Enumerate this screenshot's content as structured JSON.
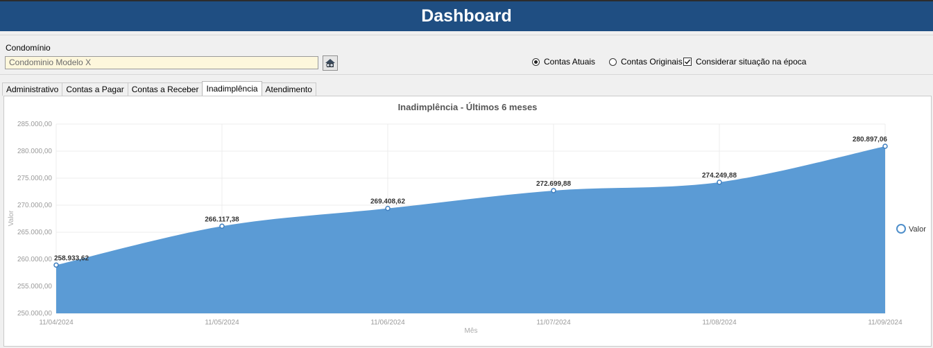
{
  "header": {
    "title": "Dashboard"
  },
  "filters": {
    "condominio_label": "Condomínio",
    "condominio_value": "Condominio Modelo X",
    "options": {
      "contas_atuais": {
        "label": "Contas Atuais",
        "selected": true
      },
      "contas_originais": {
        "label": "Contas Originais",
        "selected": false
      },
      "considerar_situacao": {
        "label": "Considerar situação na época",
        "checked": true
      }
    }
  },
  "tabs": [
    {
      "label": "Administrativo",
      "active": false
    },
    {
      "label": "Contas a Pagar",
      "active": false
    },
    {
      "label": "Contas a Receber",
      "active": false
    },
    {
      "label": "Inadimplência",
      "active": true
    },
    {
      "label": "Atendimento",
      "active": false
    }
  ],
  "colors": {
    "header": "#1f4e82",
    "area": "#5b9bd5",
    "input_bg": "#fdf7dc"
  },
  "chart_data": {
    "type": "area",
    "title": "Inadimplência - Últimos 6 meses",
    "xlabel": "Mês",
    "ylabel": "Valor",
    "x": [
      "11/04/2024",
      "11/05/2024",
      "11/06/2024",
      "11/07/2024",
      "11/08/2024",
      "11/09/2024"
    ],
    "series": [
      {
        "name": "Valor",
        "values": [
          258933.62,
          266117.38,
          269408.62,
          272699.88,
          274249.88,
          280897.06
        ],
        "labels": [
          "258.933,62",
          "266.117,38",
          "269.408,62",
          "272.699,88",
          "274.249,88",
          "280.897,06"
        ]
      }
    ],
    "ylim": [
      250000,
      285000
    ],
    "yticks": [
      "250.000,00",
      "255.000,00",
      "260.000,00",
      "265.000,00",
      "270.000,00",
      "275.000,00",
      "280.000,00",
      "285.000,00"
    ],
    "grid": true,
    "legend": "right"
  }
}
